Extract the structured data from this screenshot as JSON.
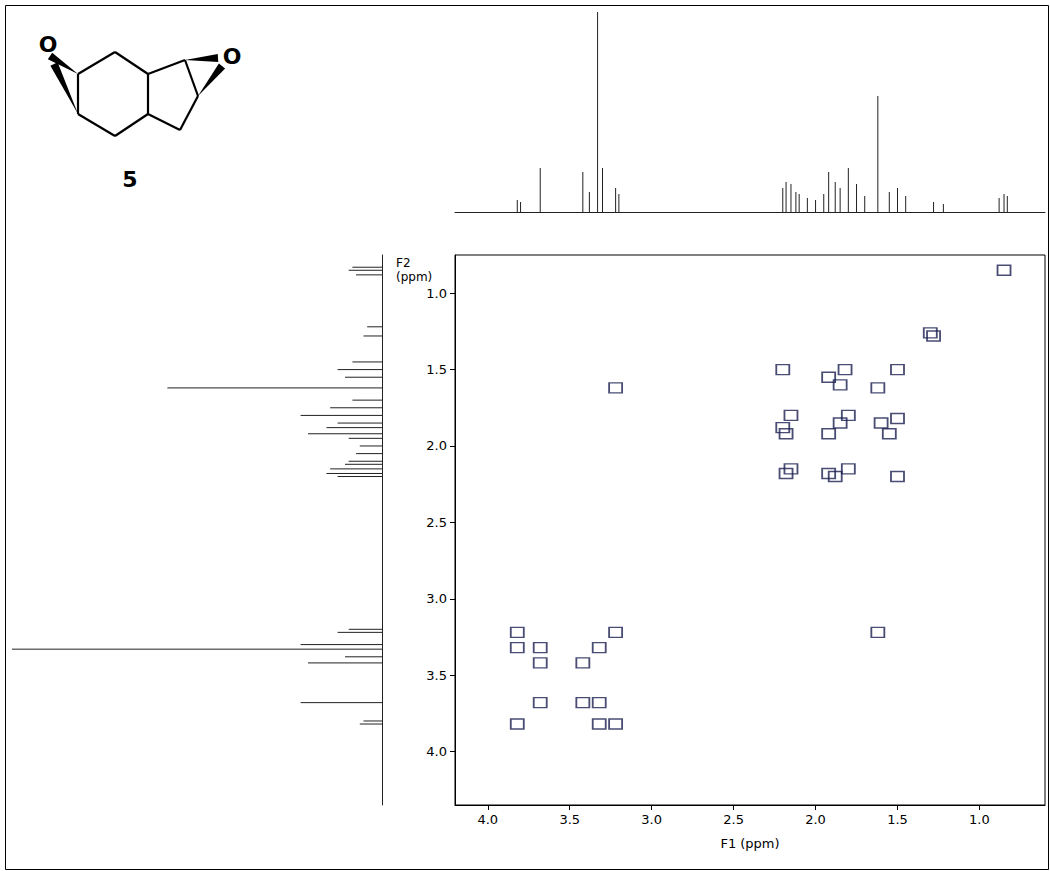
{
  "chart_data": {
    "type": "scatter",
    "x_label": "F1 (ppm)",
    "y_label": "F2 (ppm)",
    "xlim": [
      4.2,
      0.6
    ],
    "ylim": [
      0.75,
      4.35
    ],
    "xticks": [
      {
        "value": 4.0,
        "label": "4.0"
      },
      {
        "value": 3.5,
        "label": "3.5"
      },
      {
        "value": 3.0,
        "label": "3.0"
      },
      {
        "value": 2.5,
        "label": "2.5"
      },
      {
        "value": 2.0,
        "label": "2.0"
      },
      {
        "value": 1.5,
        "label": "1.5"
      },
      {
        "value": 1.0,
        "label": "1.0"
      }
    ],
    "yticks": [
      {
        "value": 1.0,
        "label": "1.0"
      },
      {
        "value": 1.5,
        "label": "1.5"
      },
      {
        "value": 2.0,
        "label": "2.0"
      },
      {
        "value": 2.5,
        "label": "2.5"
      },
      {
        "value": 3.0,
        "label": "3.0"
      },
      {
        "value": 3.5,
        "label": "3.5"
      },
      {
        "value": 4.0,
        "label": "4.0"
      }
    ],
    "grid": false,
    "color": "#1c2050",
    "marker": "square",
    "peaks": {
      "x": [
        3.82,
        3.68,
        3.42,
        3.32,
        3.22,
        2.18,
        2.15,
        1.92,
        1.85,
        1.8,
        1.62,
        1.5,
        1.28,
        0.85,
        3.82,
        3.32,
        3.82,
        3.22,
        3.68,
        3.42,
        3.68,
        3.32,
        1.62,
        3.22,
        2.2,
        1.88,
        2.2,
        1.5,
        1.92,
        1.55,
        1.82,
        1.5,
        2.15,
        1.8,
        1.6,
        1.85,
        1.92,
        2.18,
        1.3
      ],
      "y": [
        3.82,
        3.68,
        3.42,
        3.32,
        3.22,
        2.18,
        2.15,
        1.92,
        1.85,
        1.8,
        1.62,
        1.5,
        1.28,
        0.85,
        3.32,
        3.82,
        3.22,
        3.82,
        3.42,
        3.68,
        3.32,
        3.68,
        3.22,
        1.62,
        1.88,
        2.2,
        1.5,
        2.2,
        1.55,
        1.92,
        1.5,
        1.82,
        1.8,
        2.15,
        1.85,
        1.6,
        2.18,
        1.92,
        1.26
      ]
    },
    "projection": {
      "ppm": [
        3.82,
        3.8,
        3.68,
        3.42,
        3.38,
        3.33,
        3.3,
        3.22,
        3.2,
        2.2,
        2.18,
        2.15,
        2.12,
        2.1,
        2.05,
        2.0,
        1.95,
        1.92,
        1.88,
        1.85,
        1.8,
        1.75,
        1.7,
        1.62,
        1.55,
        1.5,
        1.45,
        1.28,
        1.22,
        0.88,
        0.85,
        0.83
      ],
      "intensity": [
        6,
        5,
        22,
        20,
        10,
        100,
        22,
        12,
        9,
        12,
        15,
        14,
        10,
        9,
        7,
        6,
        9,
        20,
        15,
        12,
        22,
        14,
        8,
        58,
        10,
        12,
        8,
        5,
        4,
        7,
        9,
        8
      ]
    },
    "projection_lim": [
      0,
      100
    ],
    "structure": {
      "atoms": [
        "O",
        "O"
      ],
      "label": "5"
    }
  }
}
